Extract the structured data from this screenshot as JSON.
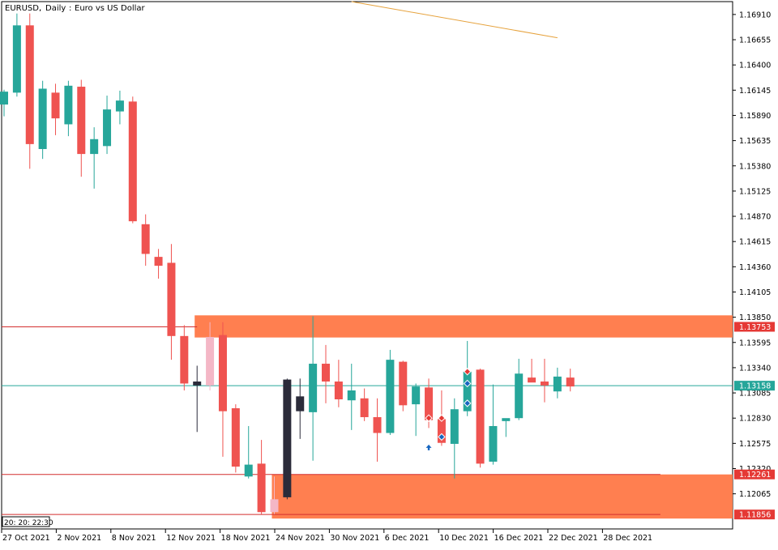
{
  "header": {
    "symbol_label": "EURUSD.",
    "timeframe_label": "Daily",
    "description_label": "Euro vs US Dollar"
  },
  "time_tag": "20: 20: 22:30",
  "colors": {
    "bull": "#26a69a",
    "bear": "#ef5350",
    "zone": "#ff7f50",
    "level_line": "#d32f2f",
    "current_price_line": "#26a69a",
    "trendline": "#e6a23c",
    "price_badge_red": "#e53935",
    "price_badge_green": "#26a69a",
    "grid": "#000000"
  },
  "chart_data": {
    "type": "candlestick",
    "title": "EURUSD., Daily: Euro vs US Dollar",
    "ylim": [
      1.1171,
      1.1704
    ],
    "y_ticks": [
      "1.16910",
      "1.16655",
      "1.16400",
      "1.16145",
      "1.15890",
      "1.15635",
      "1.15380",
      "1.15125",
      "1.14870",
      "1.14615",
      "1.14360",
      "1.14105",
      "1.13850",
      "1.13595",
      "1.13340",
      "1.13085",
      "1.12830",
      "1.12575",
      "1.12320",
      "1.12065"
    ],
    "x_tick_labels": [
      "27 Oct 2021",
      "2 Nov 2021",
      "8 Nov 2021",
      "12 Nov 2021",
      "18 Nov 2021",
      "24 Nov 2021",
      "30 Nov 2021",
      "6 Dec 2021",
      "10 Dec 2021",
      "16 Dec 2021",
      "22 Dec 2021",
      "28 Dec 2021"
    ],
    "candles": [
      {
        "o": 1.16,
        "h": 1.1615,
        "l": 1.1588,
        "c": 1.1613
      },
      {
        "o": 1.1612,
        "h": 1.1692,
        "l": 1.1608,
        "c": 1.168
      },
      {
        "o": 1.168,
        "h": 1.1692,
        "l": 1.1535,
        "c": 1.156
      },
      {
        "o": 1.1555,
        "h": 1.1624,
        "l": 1.1545,
        "c": 1.1616
      },
      {
        "o": 1.1612,
        "h": 1.1621,
        "l": 1.1569,
        "c": 1.1586
      },
      {
        "o": 1.158,
        "h": 1.1624,
        "l": 1.1568,
        "c": 1.1619
      },
      {
        "o": 1.1618,
        "h": 1.1625,
        "l": 1.1527,
        "c": 1.155
      },
      {
        "o": 1.155,
        "h": 1.1577,
        "l": 1.1515,
        "c": 1.1565
      },
      {
        "o": 1.1558,
        "h": 1.1609,
        "l": 1.155,
        "c": 1.1595
      },
      {
        "o": 1.1593,
        "h": 1.1614,
        "l": 1.158,
        "c": 1.1604
      },
      {
        "o": 1.1603,
        "h": 1.1608,
        "l": 1.148,
        "c": 1.1482
      },
      {
        "o": 1.1479,
        "h": 1.1489,
        "l": 1.1437,
        "c": 1.1449
      },
      {
        "o": 1.1446,
        "h": 1.1454,
        "l": 1.1424,
        "c": 1.1437
      },
      {
        "o": 1.144,
        "h": 1.1459,
        "l": 1.1342,
        "c": 1.1366
      },
      {
        "o": 1.1366,
        "h": 1.1377,
        "l": 1.1311,
        "c": 1.1318
      },
      {
        "o": 1.132,
        "h": 1.1336,
        "l": 1.1269,
        "c": 1.1316
      },
      {
        "o": 1.1316,
        "h": 1.138,
        "l": 1.1311,
        "c": 1.1365
      },
      {
        "o": 1.1367,
        "h": 1.138,
        "l": 1.1244,
        "c": 1.129
      },
      {
        "o": 1.1293,
        "h": 1.1297,
        "l": 1.1228,
        "c": 1.1234
      },
      {
        "o": 1.1224,
        "h": 1.1275,
        "l": 1.1222,
        "c": 1.1236
      },
      {
        "o": 1.1237,
        "h": 1.1261,
        "l": 1.1186,
        "c": 1.1188
      },
      {
        "o": 1.1188,
        "h": 1.1224,
        "l": 1.1186,
        "c": 1.1201
      },
      {
        "o": 1.1203,
        "h": 1.1323,
        "l": 1.1201,
        "c": 1.1322
      },
      {
        "o": 1.1305,
        "h": 1.1323,
        "l": 1.1262,
        "c": 1.129
      },
      {
        "o": 1.1289,
        "h": 1.1386,
        "l": 1.124,
        "c": 1.1338
      },
      {
        "o": 1.1338,
        "h": 1.1357,
        "l": 1.1298,
        "c": 1.132
      },
      {
        "o": 1.132,
        "h": 1.1342,
        "l": 1.1294,
        "c": 1.1302
      },
      {
        "o": 1.1301,
        "h": 1.1338,
        "l": 1.1271,
        "c": 1.1311
      },
      {
        "o": 1.1303,
        "h": 1.1313,
        "l": 1.128,
        "c": 1.1284
      },
      {
        "o": 1.1284,
        "h": 1.1303,
        "l": 1.1239,
        "c": 1.1268
      },
      {
        "o": 1.1268,
        "h": 1.1352,
        "l": 1.1266,
        "c": 1.1342
      },
      {
        "o": 1.134,
        "h": 1.1341,
        "l": 1.129,
        "c": 1.1296
      },
      {
        "o": 1.1297,
        "h": 1.1318,
        "l": 1.1265,
        "c": 1.1315
      },
      {
        "o": 1.1314,
        "h": 1.1323,
        "l": 1.1273,
        "c": 1.1281
      },
      {
        "o": 1.1282,
        "h": 1.1311,
        "l": 1.1255,
        "c": 1.1258
      },
      {
        "o": 1.1257,
        "h": 1.1303,
        "l": 1.1222,
        "c": 1.1292
      },
      {
        "o": 1.129,
        "h": 1.1361,
        "l": 1.1285,
        "c": 1.133
      },
      {
        "o": 1.1332,
        "h": 1.1333,
        "l": 1.1233,
        "c": 1.1237
      },
      {
        "o": 1.1239,
        "h": 1.1317,
        "l": 1.1236,
        "c": 1.1275
      },
      {
        "o": 1.128,
        "h": 1.1282,
        "l": 1.1264,
        "c": 1.1283
      },
      {
        "o": 1.1283,
        "h": 1.1343,
        "l": 1.1281,
        "c": 1.1328
      },
      {
        "o": 1.1324,
        "h": 1.1343,
        "l": 1.132,
        "c": 1.1319
      },
      {
        "o": 1.132,
        "h": 1.1343,
        "l": 1.1299,
        "c": 1.1316
      },
      {
        "o": 1.131,
        "h": 1.1334,
        "l": 1.1303,
        "c": 1.1325
      },
      {
        "o": 1.1324,
        "h": 1.1333,
        "l": 1.131,
        "c": 1.1315
      }
    ],
    "highlighted_candles": [
      {
        "index": 15,
        "color": "#2b2b3a"
      },
      {
        "index": 16,
        "color": "#f4b7c6"
      },
      {
        "index": 21,
        "color": "#f4b7c6"
      },
      {
        "index": 22,
        "color": "#2b2b3a"
      },
      {
        "index": 23,
        "color": "#2b2b3a"
      }
    ],
    "zones": [
      {
        "y_top": 1.13869,
        "y_bottom": 1.13645,
        "from_index": 15,
        "color": "#ff7f50"
      },
      {
        "y_top": 1.12261,
        "y_bottom": 1.11815,
        "from_index": 21,
        "color": "#ff7f50"
      }
    ],
    "level_lines": [
      {
        "y": 1.13753,
        "from_index": 0,
        "to_index": 15,
        "color": "#d32f2f"
      },
      {
        "y": 1.12261,
        "from_index": 0,
        "to_index": 51,
        "color": "#d32f2f"
      },
      {
        "y": 1.11856,
        "from_index": 0,
        "to_index": 51,
        "color": "#d32f2f"
      }
    ],
    "current_price": 1.13158,
    "price_badges": [
      {
        "y": 1.13753,
        "label": "1.13753",
        "color": "#e53935"
      },
      {
        "y": 1.13158,
        "label": "1.13158",
        "color": "#26a69a"
      },
      {
        "y": 1.12261,
        "label": "1.12261",
        "color": "#e53935"
      },
      {
        "y": 1.11856,
        "label": "1.11856",
        "color": "#e53935"
      }
    ],
    "trendline": {
      "from": {
        "index": 27,
        "y": 1.1704
      },
      "to": {
        "index": 43,
        "y": 1.16675
      },
      "color": "#e6a23c"
    },
    "markers": [
      {
        "index": 33,
        "y": 1.1283,
        "type": "diamond",
        "color": "#e53935"
      },
      {
        "index": 33,
        "y": 1.1253,
        "type": "arrow-up",
        "color": "#1565c0"
      },
      {
        "index": 34,
        "y": 1.1283,
        "type": "diamond",
        "color": "#e53935"
      },
      {
        "index": 34,
        "y": 1.1264,
        "type": "diamond",
        "color": "#1565c0"
      },
      {
        "index": 36,
        "y": 1.133,
        "type": "diamond",
        "color": "#e53935"
      },
      {
        "index": 36,
        "y": 1.1318,
        "type": "diamond",
        "color": "#1565c0"
      },
      {
        "index": 36,
        "y": 1.1298,
        "type": "diamond",
        "color": "#1565c0"
      }
    ]
  }
}
